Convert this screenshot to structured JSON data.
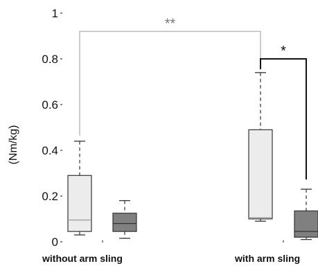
{
  "chart_data": {
    "type": "box",
    "ylabel": "(Nm/kg)",
    "ylim": [
      0,
      1
    ],
    "yticks": [
      {
        "value": 0,
        "label": "0"
      },
      {
        "value": 0.2,
        "label": "0.2"
      },
      {
        "value": 0.4,
        "label": "0.4"
      },
      {
        "value": 0.6,
        "label": "0.6"
      },
      {
        "value": 0.8,
        "label": "0.8"
      },
      {
        "value": 1,
        "label": "1"
      }
    ],
    "categories": [
      "without arm sling",
      "with arm sling"
    ],
    "boxes": [
      {
        "group": 0,
        "slot": 0,
        "fill": "#ececec",
        "min": 0.03,
        "q1": 0.045,
        "median": 0.095,
        "q3": 0.29,
        "max": 0.44
      },
      {
        "group": 0,
        "slot": 1,
        "fill": "#808080",
        "min": 0.015,
        "q1": 0.045,
        "median": 0.08,
        "q3": 0.125,
        "max": 0.18
      },
      {
        "group": 1,
        "slot": 0,
        "fill": "#ececec",
        "min": 0.09,
        "q1": 0.1,
        "median": 0.105,
        "q3": 0.49,
        "max": 0.74
      },
      {
        "group": 1,
        "slot": 1,
        "fill": "#808080",
        "min": 0.01,
        "q1": 0.02,
        "median": 0.045,
        "q3": 0.135,
        "max": 0.23
      }
    ],
    "annotations": [
      {
        "label": "**",
        "from": 0,
        "to": 2,
        "y": 0.92,
        "color": "#bbbbbb"
      },
      {
        "label": "*",
        "from": 2,
        "to": 3,
        "y": 0.8,
        "color": "#111111"
      }
    ]
  }
}
